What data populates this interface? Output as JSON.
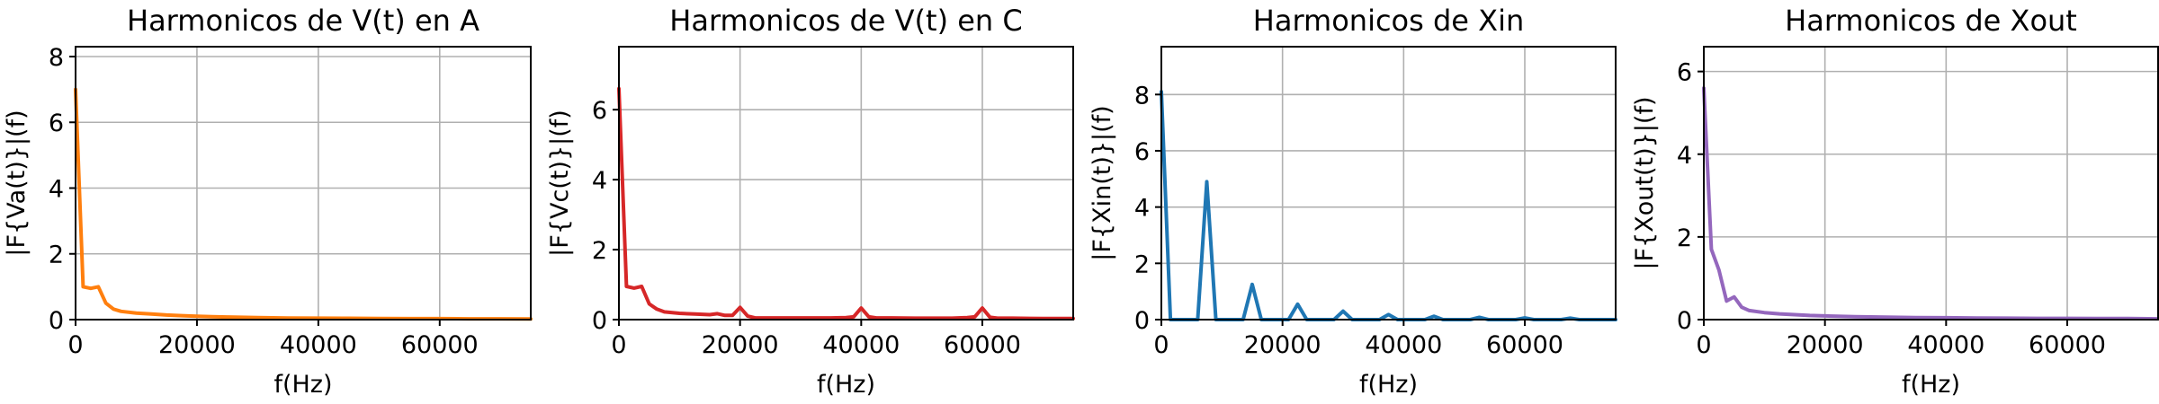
{
  "chart_data": [
    {
      "type": "line",
      "title": "Harmonicos de V(t) en A",
      "xlabel": "f(Hz)",
      "ylabel": "|F{Va(t)}|(f)",
      "xlim": [
        0,
        75000
      ],
      "ylim": [
        0,
        8.3
      ],
      "xticks": [
        0,
        20000,
        40000,
        60000
      ],
      "yticks": [
        0,
        2,
        4,
        6,
        8
      ],
      "grid": true,
      "color": "#ff7f0e",
      "series": [
        {
          "x": [
            0,
            1250,
            2500,
            3750,
            5000,
            6250,
            7500,
            10000,
            12500,
            15000,
            17500,
            20000,
            22500,
            25000,
            30000,
            35000,
            40000,
            45000,
            50000,
            55000,
            60000,
            65000,
            70000,
            75000
          ],
          "y": [
            7.0,
            1.0,
            0.95,
            1.0,
            0.5,
            0.32,
            0.25,
            0.2,
            0.17,
            0.14,
            0.12,
            0.1,
            0.09,
            0.08,
            0.06,
            0.05,
            0.045,
            0.04,
            0.035,
            0.03,
            0.03,
            0.025,
            0.025,
            0.02
          ]
        }
      ]
    },
    {
      "type": "line",
      "title": "Harmonicos de V(t) en C",
      "xlabel": "f(Hz)",
      "ylabel": "|F{Vc(t)}|(f)",
      "xlim": [
        0,
        75000
      ],
      "ylim": [
        0,
        7.8
      ],
      "xticks": [
        0,
        20000,
        40000,
        60000
      ],
      "yticks": [
        0,
        2,
        4,
        6
      ],
      "grid": true,
      "color": "#d62728",
      "series": [
        {
          "x": [
            0,
            1250,
            2500,
            3750,
            5000,
            6250,
            7500,
            10000,
            12500,
            15000,
            16250,
            17500,
            18750,
            20000,
            21250,
            22500,
            25000,
            30000,
            35000,
            37500,
            38750,
            40000,
            41250,
            42500,
            45000,
            50000,
            55000,
            57500,
            58750,
            60000,
            61250,
            62500,
            65000,
            70000,
            75000
          ],
          "y": [
            6.6,
            0.95,
            0.9,
            0.95,
            0.45,
            0.3,
            0.22,
            0.18,
            0.16,
            0.14,
            0.17,
            0.12,
            0.12,
            0.35,
            0.1,
            0.05,
            0.05,
            0.05,
            0.05,
            0.06,
            0.08,
            0.33,
            0.08,
            0.05,
            0.05,
            0.04,
            0.04,
            0.06,
            0.08,
            0.33,
            0.07,
            0.04,
            0.04,
            0.03,
            0.03
          ]
        }
      ]
    },
    {
      "type": "line",
      "title": "Harmonicos de Xin",
      "xlabel": "f(Hz)",
      "ylabel": "|F{Xin(t)}|(f)",
      "xlim": [
        0,
        75000
      ],
      "ylim": [
        0,
        9.7
      ],
      "xticks": [
        0,
        20000,
        40000,
        60000
      ],
      "yticks": [
        0,
        2,
        4,
        6,
        8
      ],
      "grid": true,
      "color": "#1f77b4",
      "series": [
        {
          "x": [
            0,
            1500,
            3000,
            4500,
            6000,
            7500,
            9000,
            10500,
            12000,
            13500,
            15000,
            16500,
            18000,
            19500,
            21000,
            22500,
            24000,
            25500,
            27000,
            28500,
            30000,
            31500,
            33000,
            34500,
            36000,
            37500,
            39000,
            40500,
            42000,
            43500,
            45000,
            46500,
            48000,
            49500,
            51000,
            52500,
            54000,
            55500,
            57000,
            58500,
            60000,
            61500,
            63000,
            64500,
            66000,
            67500,
            69000,
            70500,
            72000,
            73500,
            75000
          ],
          "y": [
            8.1,
            0,
            0,
            0,
            0,
            4.9,
            0,
            0,
            0,
            0,
            1.25,
            0,
            0,
            0,
            0,
            0.55,
            0,
            0,
            0,
            0,
            0.3,
            0,
            0,
            0,
            0,
            0.18,
            0,
            0,
            0,
            0,
            0.12,
            0,
            0,
            0,
            0,
            0.08,
            0,
            0,
            0,
            0,
            0.06,
            0,
            0,
            0,
            0,
            0.05,
            0,
            0,
            0,
            0,
            0
          ]
        }
      ]
    },
    {
      "type": "line",
      "title": "Harmonicos de Xout",
      "xlabel": "f(Hz)",
      "ylabel": "|F{Xout(t)}|(f)",
      "xlim": [
        0,
        75000
      ],
      "ylim": [
        0,
        6.6
      ],
      "xticks": [
        0,
        20000,
        40000,
        60000
      ],
      "yticks": [
        0,
        2,
        4,
        6
      ],
      "grid": true,
      "color": "#9467bd",
      "series": [
        {
          "x": [
            0,
            1250,
            2500,
            3750,
            5000,
            6250,
            7500,
            10000,
            12500,
            15000,
            17500,
            20000,
            25000,
            30000,
            35000,
            40000,
            45000,
            50000,
            55000,
            60000,
            65000,
            70000,
            75000
          ],
          "y": [
            5.6,
            1.7,
            1.2,
            0.45,
            0.55,
            0.3,
            0.22,
            0.17,
            0.14,
            0.12,
            0.1,
            0.09,
            0.07,
            0.06,
            0.05,
            0.045,
            0.04,
            0.035,
            0.03,
            0.03,
            0.025,
            0.025,
            0.02
          ]
        }
      ]
    }
  ]
}
